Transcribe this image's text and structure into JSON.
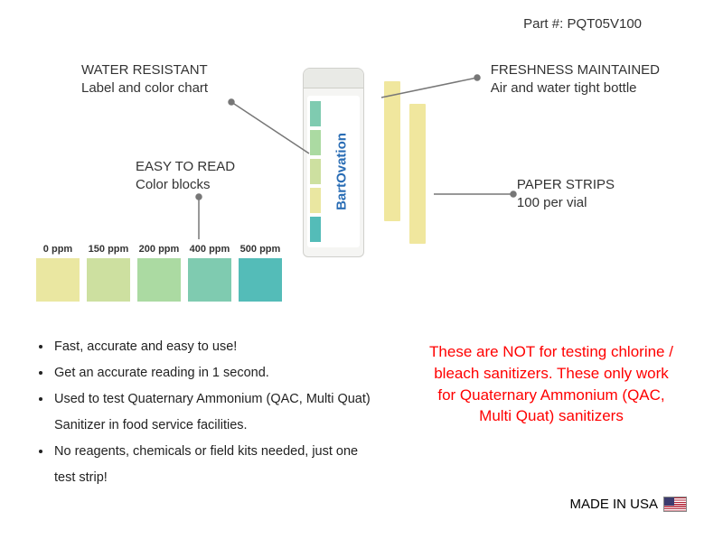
{
  "partNumber": "Part #: PQT05V100",
  "callouts": {
    "waterResistant": {
      "title": "WATER RESISTANT",
      "sub": "Label and color chart"
    },
    "freshness": {
      "title": "FRESHNESS MAINTAINED",
      "sub": "Air and water tight bottle"
    },
    "easyRead": {
      "title": "EASY TO READ",
      "sub": "Color blocks"
    },
    "paperStrips": {
      "title": "PAPER STRIPS",
      "sub": "100 per vial"
    }
  },
  "brand": "BartOvation",
  "swatches": [
    {
      "label": "0 ppm",
      "color": "#eae7a1"
    },
    {
      "label": "150 ppm",
      "color": "#cde0a0"
    },
    {
      "label": "200 ppm",
      "color": "#abdaa2"
    },
    {
      "label": "400 ppm",
      "color": "#7fcbb0"
    },
    {
      "label": "500 ppm",
      "color": "#54bcb8"
    }
  ],
  "vialColors": [
    "#7fcbb0",
    "#abdaa2",
    "#cde0a0",
    "#eae7a1",
    "#54bcb8"
  ],
  "bullets": [
    "Fast, accurate and easy to use!",
    "Get an accurate reading in 1 second.",
    "Used to test Quaternary Ammonium (QAC, Multi Quat) Sanitizer in food service facilities.",
    "No reagents, chemicals or field kits needed, just one test strip!"
  ],
  "warning": "These are NOT for testing chlorine / bleach sanitizers. These only work for Quaternary Ammonium (QAC, Multi Quat) sanitizers",
  "madeIn": "MADE IN USA",
  "leaderColor": "#777777"
}
